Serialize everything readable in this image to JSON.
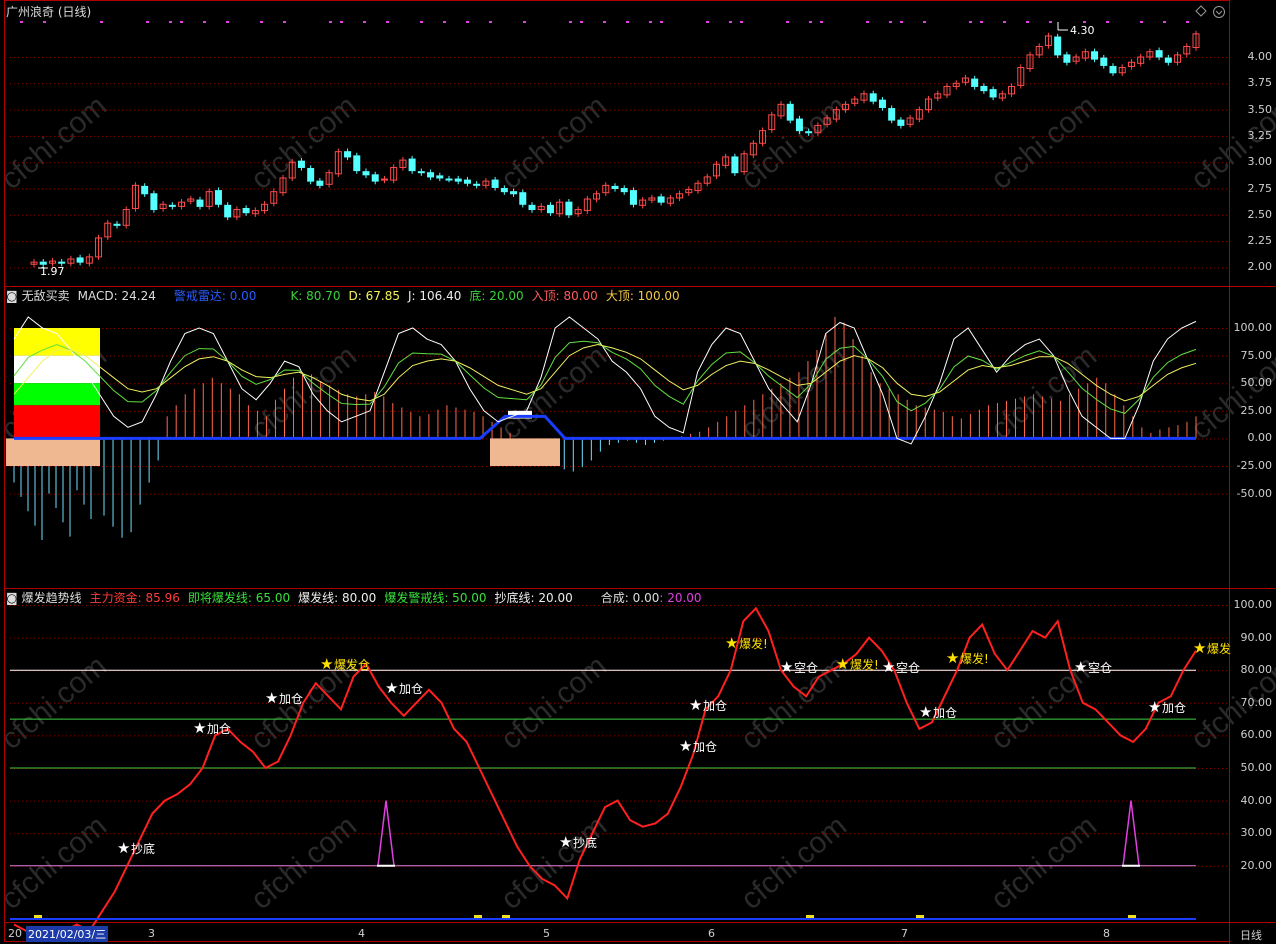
{
  "price_panel": {
    "title": "广州浪奇 (日线)",
    "high_label": "4.30",
    "low_label": "1.97",
    "y_ticks": [
      "4.00",
      "3.75",
      "3.50",
      "3.25",
      "3.00",
      "2.75",
      "2.50",
      "2.25",
      "2.00"
    ]
  },
  "indicator_panel": {
    "name": "无敌买卖",
    "macd": "MACD: 24.24",
    "warn": "警戒雷达: 0.00",
    "k": "K: 80.70",
    "d": "D: 67.85",
    "j": "J: 106.40",
    "bottom": "底: 20.00",
    "enter_top": "入顶: 80.00",
    "big_top": "大顶: 100.00",
    "y_ticks": [
      "100.00",
      "75.00",
      "50.00",
      "25.00",
      "0.00",
      "-25.00",
      "-50.00"
    ]
  },
  "trend_panel": {
    "name": "爆发趋势线",
    "main_fund": "主力资金: 85.96",
    "near_burst": "即将爆发线: 65.00",
    "burst_line": "爆发线: 80.00",
    "burst_warn": "爆发警戒线: 50.00",
    "bottom_line": "抄底线: 20.00",
    "composite": "合成: 0.00",
    "composite_val": ": 20.00",
    "y_ticks": [
      "100.00",
      "90.00",
      "80.00",
      "70.00",
      "60.00",
      "50.00",
      "40.00",
      "30.00",
      "20.00"
    ],
    "signals": [
      {
        "text": "抄底"
      },
      {
        "text": "加仓"
      },
      {
        "text": "加仓"
      },
      {
        "text": "爆发仓"
      },
      {
        "text": "加仓"
      },
      {
        "text": "抄底"
      },
      {
        "text": "加仓"
      },
      {
        "text": "加仓"
      },
      {
        "text": "爆发!"
      },
      {
        "text": "空仓"
      },
      {
        "text": "爆发!"
      },
      {
        "text": "空仓"
      },
      {
        "text": "加仓"
      },
      {
        "text": "爆发!"
      },
      {
        "text": "空仓"
      },
      {
        "text": "加仓"
      },
      {
        "text": "爆发"
      }
    ]
  },
  "x_axis": {
    "date_box": "2021/02/03/三",
    "prefix": "20",
    "months": [
      "3",
      "4",
      "5",
      "6",
      "7",
      "8"
    ],
    "period": "日线"
  },
  "watermark": "cfchi.com",
  "colors": {
    "up": "#ff4a4a",
    "down": "#54ffff",
    "grid": "#8b0000",
    "blue": "#1a3cff"
  }
}
